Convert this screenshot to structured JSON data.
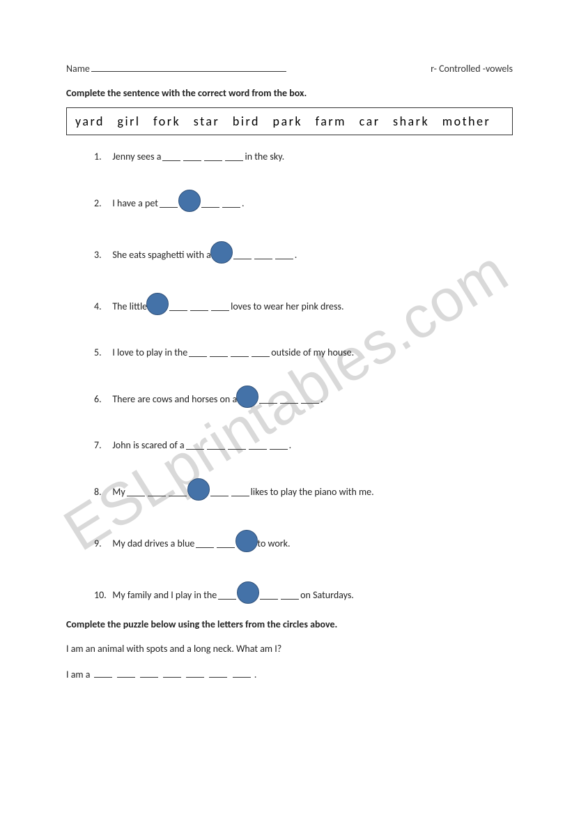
{
  "header": {
    "name_label": "Name",
    "topic_label": "r- Controlled -vowels"
  },
  "instruction1": "Complete the sentence with the correct word from the box.",
  "word_box": "yard   girl   fork   star   bird   park   farm   car   shark   mother",
  "questions": [
    {
      "num": "1.",
      "pre": "Jenny sees a ",
      "blanks": 4,
      "circle_at": null,
      "post": " in the sky."
    },
    {
      "num": "2.",
      "pre": "I have a pet ",
      "blanks": 4,
      "circle_at": 1,
      "post": "."
    },
    {
      "num": "3.",
      "pre": "She eats spaghetti with a ",
      "blanks": 4,
      "circle_at": 0,
      "post": "."
    },
    {
      "num": "4.",
      "pre": "The little ",
      "blanks": 4,
      "circle_at": 0,
      "post": "loves to wear her pink dress."
    },
    {
      "num": "5.",
      "pre": "I love to play in the ",
      "blanks": 4,
      "circle_at": null,
      "post": " outside of my house."
    },
    {
      "num": "6.",
      "pre": "There are cows and horses on a ",
      "blanks": 4,
      "circle_at": 0,
      "post": "."
    },
    {
      "num": "7.",
      "pre": "John is scared of a ",
      "blanks": 5,
      "circle_at": null,
      "post": "."
    },
    {
      "num": "8.",
      "pre": "My ",
      "blanks": 6,
      "circle_at": 3,
      "post": " likes to play the piano with me."
    },
    {
      "num": "9.",
      "pre": "My dad drives a blue ",
      "blanks": 3,
      "circle_at": 2,
      "post": " to work."
    },
    {
      "num": "10.",
      "pre": "My family and I play in the ",
      "blanks": 4,
      "circle_at": 1,
      "post": " on Saturdays."
    }
  ],
  "instruction2": "Complete the puzzle below using the letters from the circles above.",
  "puzzle_riddle": "I am an animal with spots and a long neck.  What am I?",
  "puzzle_answer_pre": "I am a ",
  "puzzle_answer_blanks": 7,
  "puzzle_answer_post": ".",
  "watermark": "ESLprintables.com",
  "colors": {
    "circle_fill": "#4472a8",
    "circle_border": "#2f5079",
    "text": "#222222",
    "background": "#ffffff"
  }
}
